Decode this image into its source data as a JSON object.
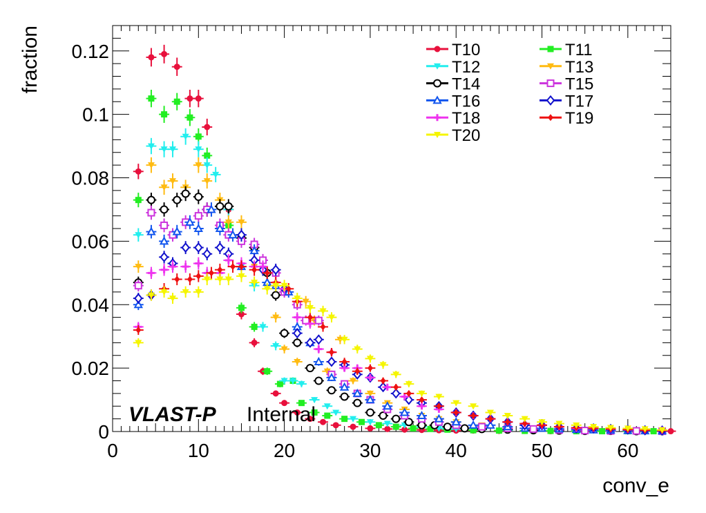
{
  "chart_data": {
    "type": "scatter",
    "title": "",
    "xlabel": "conv_e",
    "ylabel": "fraction",
    "xlim": [
      0,
      65
    ],
    "ylim": [
      0,
      0.128
    ],
    "x_ticks": [
      0,
      10,
      20,
      30,
      40,
      50,
      60
    ],
    "x_tick_labels": [
      "0",
      "10",
      "20",
      "30",
      "40",
      "50",
      "60"
    ],
    "y_ticks": [
      0,
      0.02,
      0.04,
      0.06,
      0.08,
      0.1,
      0.12
    ],
    "y_tick_labels": [
      "0",
      "0.02",
      "0.04",
      "0.06",
      "0.08",
      "0.1",
      "0.12"
    ],
    "grid": false,
    "legend_position": "top-right",
    "watermark": {
      "bold": "VLAST-P",
      "normal": "Internal"
    },
    "series": [
      {
        "name": "T10",
        "color": "#e8103c",
        "marker": "filled-circle",
        "x": [
          3.0,
          4.5,
          6.0,
          7.5,
          9.0,
          10.0,
          11.0,
          13.5,
          15.0,
          16.5,
          17.5,
          19.0,
          20.0,
          21.5,
          23.0,
          24.5,
          26.0,
          28.0,
          30.0,
          32.0,
          34.0,
          36.0,
          38.0,
          40.0,
          42.0,
          45.0,
          48.0,
          51.0,
          54.0,
          57.0,
          60.0,
          63.0,
          65.0
        ],
        "y": [
          0.082,
          0.118,
          0.119,
          0.115,
          0.105,
          0.105,
          0.096,
          0.07,
          0.037,
          0.028,
          0.019,
          0.012,
          0.009,
          0.006,
          0.004,
          0.003,
          0.002,
          0.0015,
          0.001,
          0.0008,
          0.0006,
          0.0005,
          0.0004,
          0.0003,
          0.0003,
          0.0002,
          0.0002,
          0.0001,
          0.0001,
          0.0001,
          0.0001,
          0.0001,
          0.0001
        ]
      },
      {
        "name": "T11",
        "color": "#22ee22",
        "marker": "filled-square",
        "x": [
          3.0,
          4.5,
          6.0,
          7.5,
          9.0,
          10.0,
          11.0,
          13.5,
          15.0,
          16.5,
          18.0,
          19.5,
          21.0,
          22.0,
          23.5,
          25.0,
          27.0,
          29.0,
          31.0,
          33.0,
          35.0,
          37.0,
          39.0,
          42.0,
          45.0,
          48.0,
          51.0,
          54.0,
          57.0,
          60.0,
          63.0
        ],
        "y": [
          0.073,
          0.105,
          0.1,
          0.104,
          0.099,
          0.093,
          0.087,
          0.065,
          0.039,
          0.033,
          0.019,
          0.015,
          0.016,
          0.009,
          0.006,
          0.005,
          0.004,
          0.003,
          0.002,
          0.0015,
          0.001,
          0.0008,
          0.0006,
          0.0004,
          0.0003,
          0.0002,
          0.0002,
          0.0001,
          0.0001,
          0.0001,
          0.0001
        ]
      },
      {
        "name": "T12",
        "color": "#22eeee",
        "marker": "filled-triangle-down",
        "x": [
          3.0,
          4.5,
          6.0,
          7.0,
          8.5,
          10.0,
          11.0,
          12.0,
          13.5,
          15.0,
          16.5,
          17.5,
          19.0,
          20.0,
          21.0,
          22.0,
          23.5,
          25.0,
          26.0,
          28.0,
          30.0,
          32.0,
          34.0,
          36.0,
          38.0,
          40.0,
          43.0,
          46.0,
          49.0,
          52.0,
          55.0,
          58.0,
          61.0,
          64.0
        ],
        "y": [
          0.062,
          0.09,
          0.089,
          0.089,
          0.093,
          0.089,
          0.084,
          0.081,
          0.07,
          0.052,
          0.046,
          0.033,
          0.027,
          0.016,
          0.016,
          0.015,
          0.01,
          0.008,
          0.006,
          0.004,
          0.003,
          0.0025,
          0.002,
          0.0015,
          0.001,
          0.0008,
          0.0006,
          0.0004,
          0.0003,
          0.0002,
          0.0002,
          0.0001,
          0.0001,
          0.0001
        ]
      },
      {
        "name": "T13",
        "color": "#ffbb11",
        "marker": "filled-triangle-down",
        "x": [
          3.0,
          4.5,
          6.0,
          7.0,
          8.5,
          10.0,
          11.0,
          12.5,
          13.5,
          15.0,
          16.5,
          17.5,
          19.0,
          20.0,
          21.5,
          22.5,
          23.5,
          25.0,
          26.5,
          28.0,
          30.0,
          32.0,
          34.0,
          36.0,
          38.0,
          40.0,
          43.0,
          46.0,
          49.0,
          52.0,
          55.0,
          58.0,
          61.0,
          64.0
        ],
        "y": [
          0.052,
          0.084,
          0.077,
          0.079,
          0.077,
          0.084,
          0.079,
          0.073,
          0.066,
          0.066,
          0.052,
          0.051,
          0.036,
          0.026,
          0.022,
          0.041,
          0.035,
          0.019,
          0.029,
          0.016,
          0.012,
          0.009,
          0.007,
          0.005,
          0.004,
          0.003,
          0.002,
          0.0015,
          0.001,
          0.0008,
          0.0005,
          0.0003,
          0.0002,
          0.0001
        ]
      },
      {
        "name": "T14",
        "color": "#000000",
        "marker": "open-circle",
        "x": [
          3.0,
          4.5,
          6.0,
          7.5,
          8.5,
          10.0,
          11.0,
          12.5,
          13.5,
          15.0,
          16.5,
          18.0,
          19.0,
          20.0,
          21.5,
          23.0,
          24.0,
          25.5,
          27.0,
          28.5,
          30.0,
          31.5,
          33.0,
          34.5,
          36.0,
          37.5,
          39.0,
          41.0,
          43.0,
          46.0,
          49.0,
          52.0,
          55.0,
          58.0,
          61.0,
          64.0
        ],
        "y": [
          0.047,
          0.073,
          0.07,
          0.073,
          0.075,
          0.074,
          0.07,
          0.071,
          0.071,
          0.061,
          0.058,
          0.05,
          0.043,
          0.031,
          0.028,
          0.02,
          0.016,
          0.013,
          0.011,
          0.009,
          0.006,
          0.005,
          0.004,
          0.003,
          0.002,
          0.002,
          0.0015,
          0.001,
          0.0008,
          0.0006,
          0.0004,
          0.0003,
          0.0002,
          0.0002,
          0.0001,
          0.0001
        ]
      },
      {
        "name": "T15",
        "color": "#cc33dd",
        "marker": "open-square",
        "x": [
          3.0,
          4.5,
          6.0,
          7.0,
          8.5,
          10.0,
          11.0,
          12.5,
          13.5,
          15.0,
          16.5,
          17.5,
          19.0,
          20.0,
          21.5,
          22.5,
          24.0,
          25.5,
          27.0,
          28.5,
          30.0,
          32.0,
          34.0,
          36.0,
          38.0,
          40.0,
          43.0,
          46.0,
          49.0,
          52.0,
          55.0,
          58.0,
          61.0,
          64.0
        ],
        "y": [
          0.046,
          0.069,
          0.065,
          0.062,
          0.066,
          0.068,
          0.07,
          0.065,
          0.062,
          0.06,
          0.059,
          0.054,
          0.05,
          0.044,
          0.04,
          0.035,
          0.035,
          0.018,
          0.015,
          0.012,
          0.01,
          0.007,
          0.005,
          0.004,
          0.003,
          0.002,
          0.0015,
          0.001,
          0.0008,
          0.0005,
          0.0003,
          0.0002,
          0.0002,
          0.0001
        ]
      },
      {
        "name": "T16",
        "color": "#1155ee",
        "marker": "open-triangle",
        "x": [
          3.0,
          4.5,
          6.0,
          7.5,
          9.0,
          10.0,
          11.5,
          12.5,
          14.0,
          15.0,
          16.5,
          18.0,
          19.0,
          20.5,
          21.5,
          23.0,
          24.0,
          25.5,
          27.0,
          28.5,
          30.0,
          32.0,
          34.0,
          36.0,
          38.0,
          40.0,
          42.0,
          44.0,
          46.0,
          48.0,
          50.0,
          52.0,
          54.0,
          56.0,
          58.0,
          60.0,
          62.0,
          64.0
        ],
        "y": [
          0.04,
          0.063,
          0.06,
          0.063,
          0.066,
          0.064,
          0.07,
          0.064,
          0.062,
          0.052,
          0.057,
          0.047,
          0.046,
          0.044,
          0.033,
          0.028,
          0.022,
          0.017,
          0.014,
          0.012,
          0.01,
          0.008,
          0.006,
          0.005,
          0.004,
          0.003,
          0.002,
          0.002,
          0.0015,
          0.001,
          0.001,
          0.0008,
          0.0006,
          0.0005,
          0.0004,
          0.0003,
          0.0002,
          0.0002
        ]
      },
      {
        "name": "T17",
        "color": "#1111cc",
        "marker": "open-diamond",
        "x": [
          3.0,
          4.5,
          6.0,
          7.0,
          8.5,
          10.0,
          11.0,
          12.5,
          13.5,
          15.0,
          16.5,
          17.5,
          19.0,
          20.0,
          21.5,
          23.0,
          24.0,
          25.5,
          27.0,
          28.5,
          30.0,
          31.5,
          33.0,
          34.5,
          36.0,
          38.0,
          40.0,
          42.0,
          44.0,
          46.0,
          48.0,
          50.0,
          52.0,
          54.0,
          56.0,
          58.0,
          60.0,
          62.0,
          64.0
        ],
        "y": [
          0.042,
          0.043,
          0.055,
          0.053,
          0.058,
          0.058,
          0.056,
          0.058,
          0.056,
          0.062,
          0.054,
          0.051,
          0.051,
          0.045,
          0.031,
          0.028,
          0.029,
          0.022,
          0.021,
          0.018,
          0.017,
          0.014,
          0.012,
          0.01,
          0.009,
          0.008,
          0.006,
          0.005,
          0.004,
          0.003,
          0.002,
          0.002,
          0.0015,
          0.001,
          0.001,
          0.0008,
          0.0006,
          0.0004,
          0.0003
        ]
      },
      {
        "name": "T18",
        "color": "#ee33ee",
        "marker": "cross",
        "x": [
          3.0,
          4.5,
          6.0,
          7.0,
          8.5,
          10.0,
          11.0,
          12.5,
          13.5,
          15.0,
          16.5,
          17.5,
          19.0,
          20.0,
          21.5,
          23.0,
          24.0,
          25.5,
          27.0,
          28.5,
          30.0,
          32.0,
          34.0,
          36.0,
          38.0,
          40.0,
          42.0,
          44.0,
          46.0,
          48.0,
          50.0,
          52.0,
          54.0,
          56.0,
          58.0,
          60.0,
          62.0,
          64.0
        ],
        "y": [
          0.033,
          0.05,
          0.051,
          0.052,
          0.052,
          0.053,
          0.05,
          0.05,
          0.054,
          0.053,
          0.052,
          0.052,
          0.047,
          0.045,
          0.036,
          0.034,
          0.026,
          0.025,
          0.02,
          0.02,
          0.017,
          0.014,
          0.011,
          0.008,
          0.007,
          0.006,
          0.005,
          0.004,
          0.003,
          0.0025,
          0.002,
          0.0015,
          0.001,
          0.001,
          0.0008,
          0.0006,
          0.0005,
          0.0004
        ]
      },
      {
        "name": "T19",
        "color": "#ee1111",
        "marker": "filled-diamond",
        "x": [
          3.0,
          4.5,
          6.0,
          7.5,
          9.0,
          10.0,
          11.5,
          12.5,
          14.0,
          15.0,
          16.5,
          18.0,
          19.0,
          20.5,
          21.5,
          23.0,
          24.5,
          25.5,
          27.0,
          28.5,
          30.0,
          31.5,
          33.0,
          34.5,
          36.0,
          38.0,
          40.0,
          42.0,
          44.0,
          46.0,
          48.0,
          50.0,
          52.0,
          54.0,
          56.0,
          58.0,
          60.0,
          62.0,
          64.0
        ],
        "y": [
          0.032,
          0.043,
          0.045,
          0.048,
          0.048,
          0.049,
          0.05,
          0.051,
          0.052,
          0.052,
          0.051,
          0.05,
          0.047,
          0.045,
          0.041,
          0.036,
          0.033,
          0.025,
          0.022,
          0.019,
          0.02,
          0.016,
          0.014,
          0.012,
          0.01,
          0.008,
          0.006,
          0.005,
          0.004,
          0.003,
          0.0025,
          0.002,
          0.0015,
          0.0012,
          0.001,
          0.0008,
          0.0006,
          0.0004,
          0.0003
        ]
      },
      {
        "name": "T20",
        "color": "#f5f500",
        "marker": "filled-triangle-down",
        "x": [
          3.0,
          4.5,
          6.0,
          7.0,
          8.5,
          10.0,
          11.0,
          12.5,
          13.5,
          15.0,
          16.5,
          18.0,
          19.0,
          20.0,
          21.5,
          23.0,
          24.5,
          25.5,
          27.0,
          28.5,
          30.0,
          31.5,
          33.0,
          34.5,
          36.0,
          38.0,
          40.0,
          42.0,
          44.0,
          46.0,
          48.0,
          50.0,
          52.0,
          54.0,
          56.0,
          58.0,
          60.0,
          62.0,
          64.0
        ],
        "y": [
          0.028,
          0.043,
          0.044,
          0.042,
          0.044,
          0.044,
          0.048,
          0.048,
          0.048,
          0.049,
          0.047,
          0.045,
          0.046,
          0.046,
          0.042,
          0.039,
          0.038,
          0.036,
          0.029,
          0.026,
          0.023,
          0.021,
          0.018,
          0.015,
          0.012,
          0.011,
          0.009,
          0.008,
          0.006,
          0.005,
          0.004,
          0.003,
          0.0025,
          0.002,
          0.0015,
          0.0012,
          0.001,
          0.0008,
          0.0005
        ]
      }
    ]
  }
}
